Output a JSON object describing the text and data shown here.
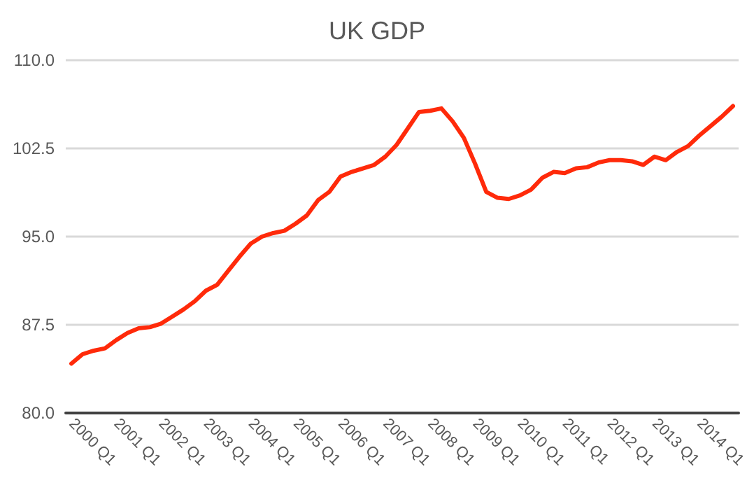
{
  "chart_data": {
    "type": "line",
    "title": "UK GDP",
    "categories": [
      "2000 Q1",
      null,
      null,
      null,
      "2001 Q1",
      null,
      null,
      null,
      "2002 Q1",
      null,
      null,
      null,
      "2003 Q1",
      null,
      null,
      null,
      "2004 Q1",
      null,
      null,
      null,
      "2005 Q1",
      null,
      null,
      null,
      "2006 Q1",
      null,
      null,
      null,
      "2007 Q1",
      null,
      null,
      null,
      "2008 Q1",
      null,
      null,
      null,
      "2009 Q1",
      null,
      null,
      null,
      "2010 Q1",
      null,
      null,
      null,
      "2011 Q1",
      null,
      null,
      null,
      "2012 Q1",
      null,
      null,
      null,
      "2013 Q1",
      null,
      null,
      null,
      "2014 Q1",
      null,
      null,
      null
    ],
    "series": [
      {
        "color": "#ff2a0a",
        "values": [
          84.2,
          85.0,
          85.3,
          85.5,
          86.2,
          86.8,
          87.2,
          87.3,
          87.6,
          88.2,
          88.8,
          89.5,
          90.4,
          90.9,
          92.1,
          93.3,
          94.4,
          95.0,
          95.3,
          95.5,
          96.1,
          96.8,
          98.1,
          98.8,
          100.1,
          100.5,
          100.8,
          101.1,
          101.8,
          102.8,
          104.2,
          105.6,
          105.7,
          105.9,
          104.8,
          103.4,
          101.2,
          98.8,
          98.3,
          98.2,
          98.5,
          99.0,
          100.0,
          100.5,
          100.4,
          100.8,
          100.9,
          101.3,
          101.5,
          101.5,
          101.4,
          101.1,
          101.8,
          101.5,
          102.2,
          102.7,
          103.6,
          104.4,
          105.2,
          106.1
        ]
      }
    ],
    "ylim": [
      80,
      110
    ],
    "yticks": [
      {
        "value": 80,
        "label": "80.0"
      },
      {
        "value": 87.5,
        "label": "87.5"
      },
      {
        "value": 95,
        "label": "95.0"
      },
      {
        "value": 102.5,
        "label": "102.5"
      },
      {
        "value": 110,
        "label": "110.0"
      }
    ],
    "grid": "y",
    "marker": "none",
    "line_style": "solid"
  }
}
